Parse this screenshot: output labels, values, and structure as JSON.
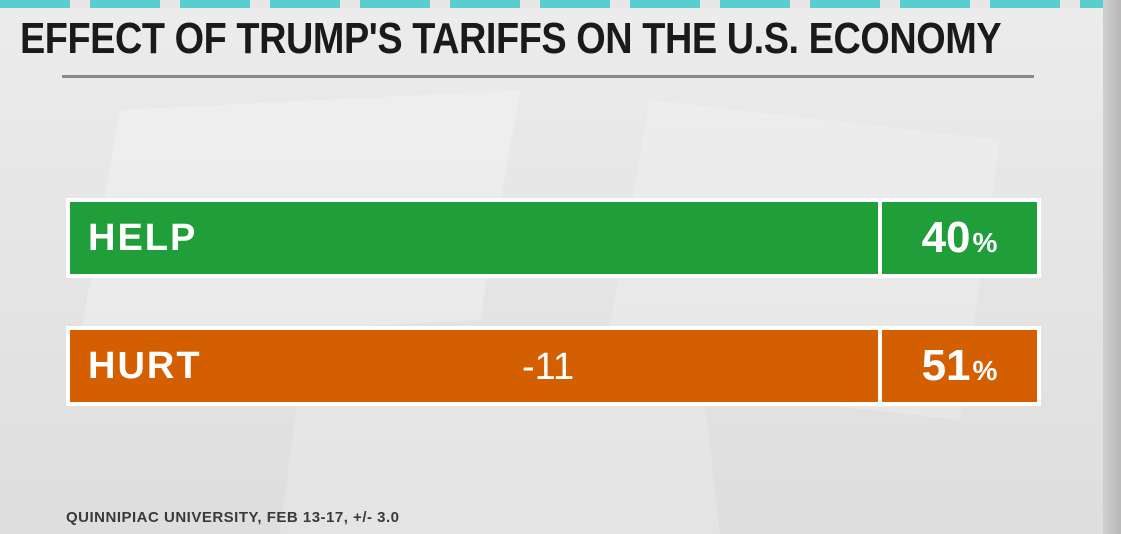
{
  "title": "EFFECT OF TRUMP'S TARIFFS ON THE U.S. ECONOMY",
  "source": "QUINNIPIAC UNIVERSITY, FEB 13-17, +/- 3.0",
  "colors": {
    "help": "#1f9e3a",
    "hurt": "#d45f00"
  },
  "chart_data": {
    "type": "bar",
    "orientation": "horizontal",
    "title": "EFFECT OF TRUMP'S TARIFFS ON THE U.S. ECONOMY",
    "categories": [
      "HELP",
      "HURT"
    ],
    "values": [
      40,
      51
    ],
    "value_labels": [
      "40",
      "51"
    ],
    "unit": "%",
    "annotations": [
      {
        "category": "HURT",
        "text": "-11"
      }
    ],
    "grid": false,
    "legend": "none"
  }
}
